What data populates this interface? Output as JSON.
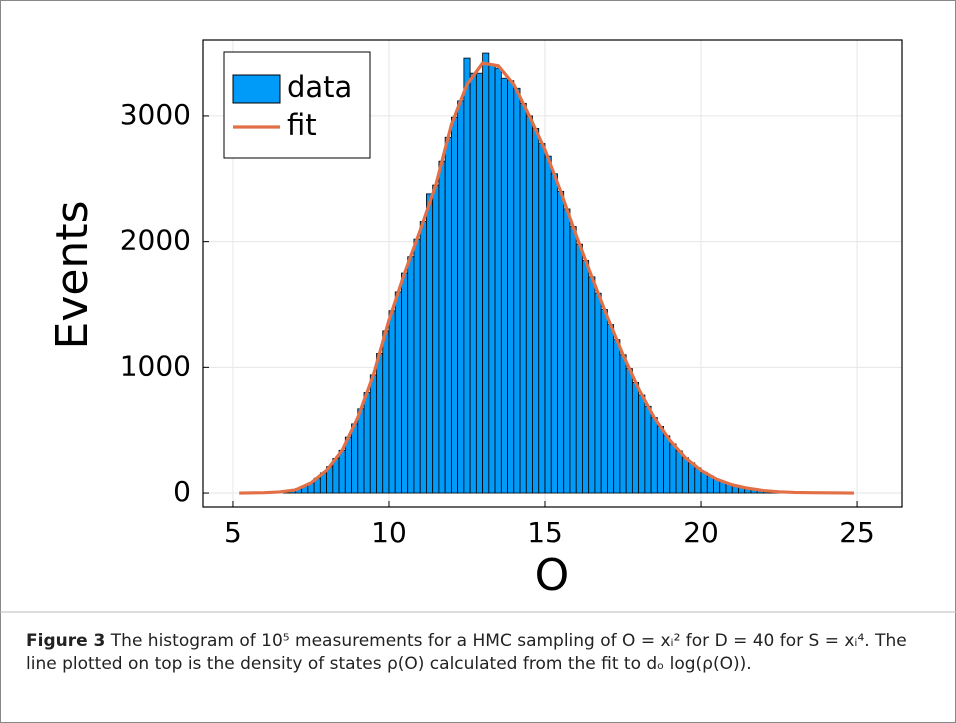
{
  "chart_data": {
    "type": "histogram",
    "xlabel": "O",
    "ylabel": "Events",
    "xlim": [
      4.04,
      26.44
    ],
    "ylim": [
      -111,
      3604
    ],
    "xticks": [
      5,
      10,
      15,
      20,
      25
    ],
    "yticks": [
      0,
      1000,
      2000,
      3000
    ],
    "grid": true,
    "legend": "top-left",
    "series": [
      {
        "name": "data",
        "type": "histogram",
        "color": "#009af9",
        "bins": [
          6.6,
          6.8,
          7.0,
          7.2,
          7.4,
          7.6,
          7.8,
          8.0,
          8.2,
          8.4,
          8.6,
          8.8,
          9.0,
          9.2,
          9.4,
          9.6,
          9.8,
          10.0,
          10.2,
          10.4,
          10.6,
          10.8,
          11.0,
          11.2,
          11.4,
          11.6,
          11.8,
          12.0,
          12.2,
          12.4,
          12.6,
          12.8,
          13.0,
          13.2,
          13.4,
          13.6,
          13.8,
          14.0,
          14.2,
          14.4,
          14.6,
          14.8,
          15.0,
          15.2,
          15.4,
          15.6,
          15.8,
          16.0,
          16.2,
          16.4,
          16.6,
          16.8,
          17.0,
          17.2,
          17.4,
          17.6,
          17.8,
          18.0,
          18.2,
          18.4,
          18.6,
          18.8,
          19.0,
          19.2,
          19.4,
          19.6,
          19.8,
          20.0,
          20.2,
          20.4,
          20.6,
          20.8,
          21.0,
          21.2,
          21.4,
          21.6,
          21.8,
          22.0,
          22.2,
          22.4,
          22.6
        ],
        "values": [
          15,
          21,
          35,
          55,
          80,
          118,
          160,
          210,
          275,
          340,
          445,
          550,
          670,
          800,
          940,
          1110,
          1290,
          1450,
          1600,
          1750,
          1880,
          2020,
          2160,
          2380,
          2450,
          2640,
          2830,
          2990,
          3120,
          3460,
          3340,
          3340,
          3500,
          3410,
          3380,
          3300,
          3280,
          3220,
          3100,
          3000,
          2900,
          2780,
          2680,
          2540,
          2400,
          2260,
          2120,
          1980,
          1850,
          1720,
          1590,
          1460,
          1340,
          1220,
          1100,
          990,
          880,
          780,
          690,
          600,
          530,
          455,
          390,
          335,
          280,
          240,
          200,
          165,
          135,
          110,
          90,
          72,
          60,
          48,
          38,
          30,
          23,
          17,
          13,
          10
        ]
      },
      {
        "name": "fit",
        "type": "line",
        "color": "#e26f46",
        "x": [
          5.2,
          5.5,
          6.0,
          6.5,
          7.0,
          7.5,
          8.0,
          8.5,
          9.0,
          9.5,
          10.0,
          10.5,
          11.0,
          11.5,
          12.0,
          12.5,
          13.0,
          13.5,
          14.0,
          14.5,
          15.0,
          15.5,
          16.0,
          16.5,
          17.0,
          17.5,
          18.0,
          18.5,
          19.0,
          19.5,
          20.0,
          20.5,
          21.0,
          21.5,
          22.0,
          22.5,
          23.0,
          23.5,
          24.0,
          24.5,
          24.9
        ],
        "values": [
          0,
          1,
          3,
          9,
          25,
          80,
          180,
          340,
          600,
          940,
          1376,
          1750,
          2090,
          2450,
          2930,
          3250,
          3420,
          3400,
          3250,
          3000,
          2730,
          2400,
          2050,
          1720,
          1400,
          1100,
          830,
          600,
          420,
          280,
          180,
          110,
          65,
          38,
          20,
          10,
          5,
          3,
          2,
          1,
          0
        ]
      }
    ]
  },
  "caption": {
    "label": "Figure 3",
    "text": "The histogram of 10⁵ measurements for a HMC sampling of O = xᵢ² for D = 40 for S = xᵢ⁴. The line plotted on top is the density of states ρ(O) calculated from the fit to dₒ log(ρ(O))."
  }
}
